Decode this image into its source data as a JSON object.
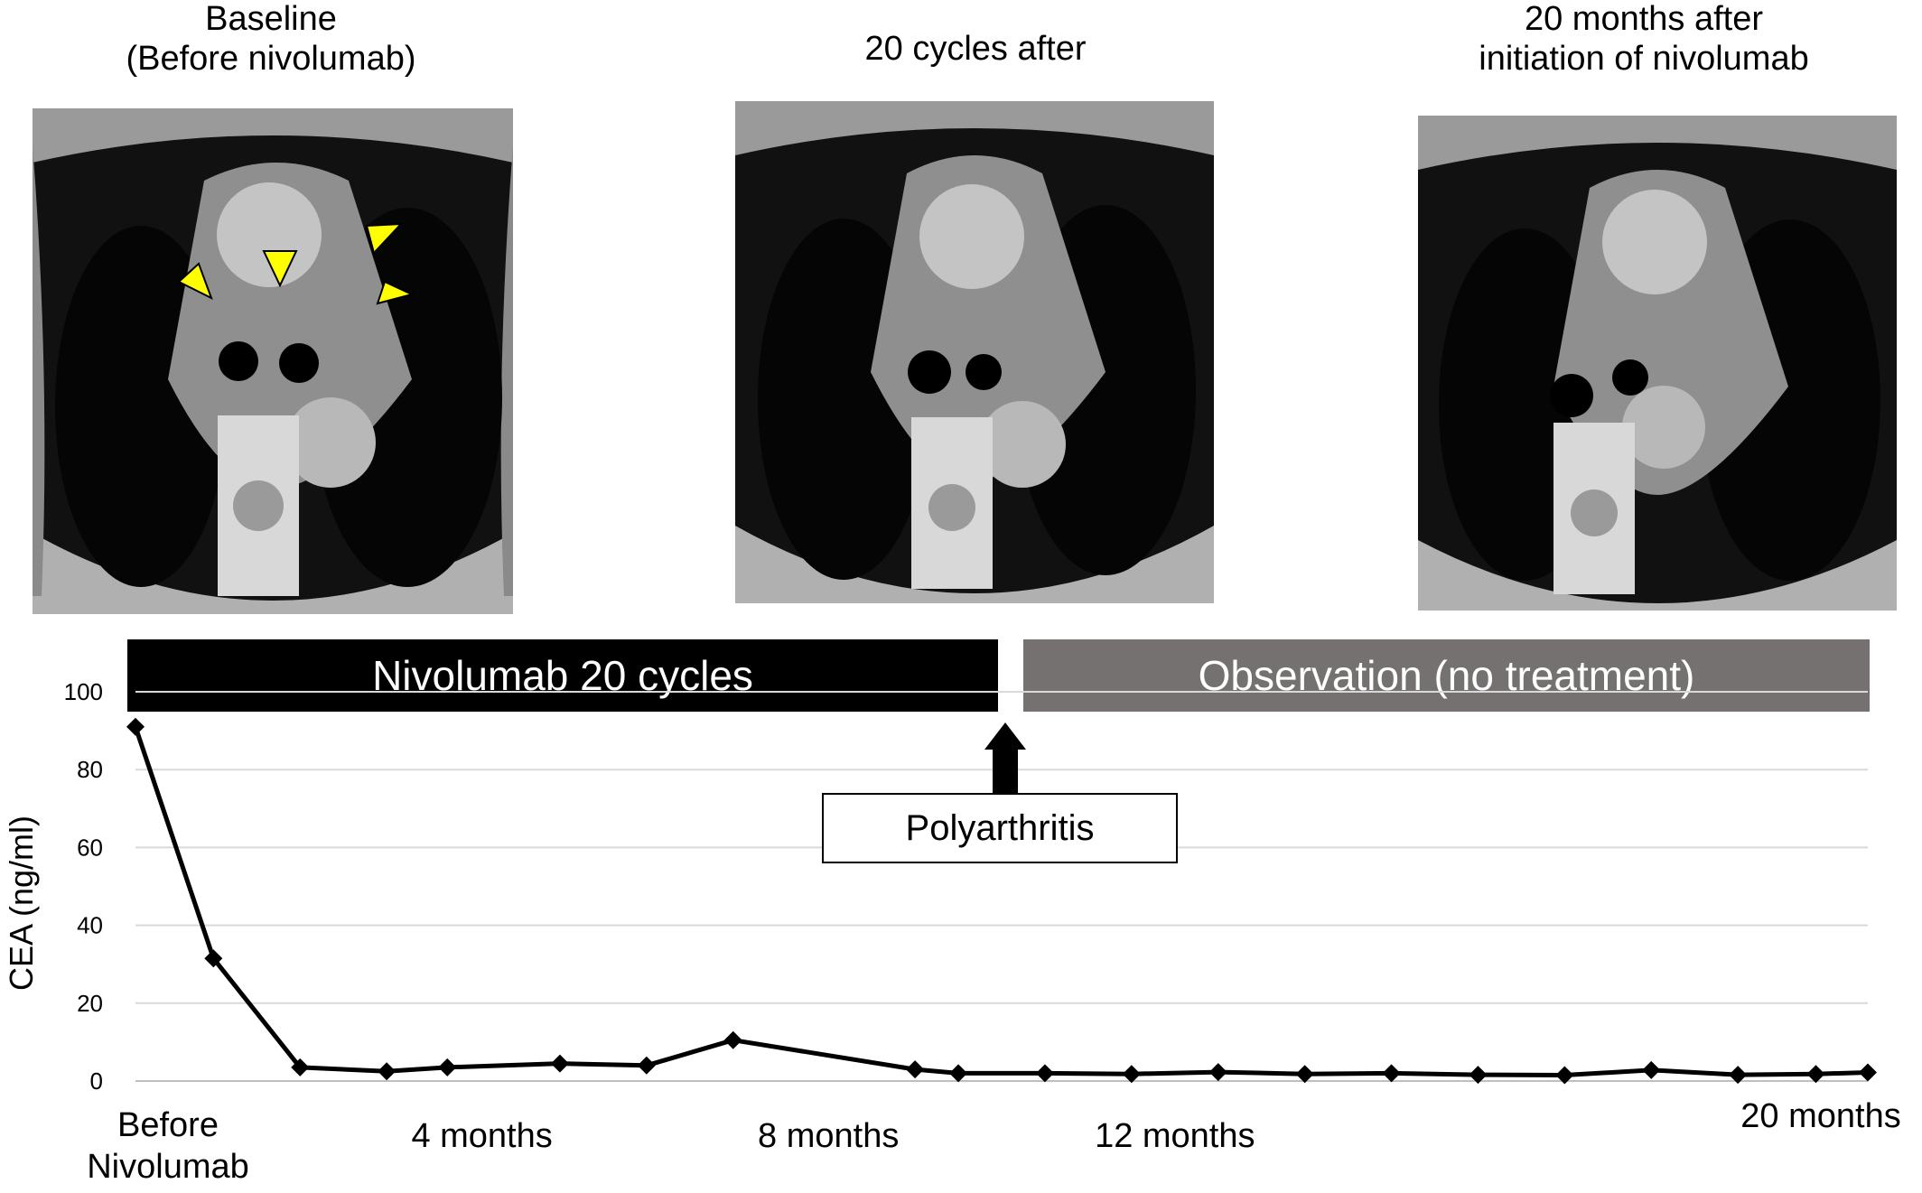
{
  "panels": [
    {
      "caption_lines": [
        "Baseline",
        "(Before nivolumab)"
      ]
    },
    {
      "caption_lines": [
        "20 cycles after"
      ]
    },
    {
      "caption_lines": [
        "20 months after",
        "initiation of nivolumab"
      ]
    }
  ],
  "timeline": {
    "treatment_label": "Nivolumab 20 cycles",
    "treatment_color": "#000000",
    "observation_label": "Observation (no treatment)",
    "observation_color": "#767171",
    "event_label": "Polyarthritis"
  },
  "colors": {
    "arrowhead": "#ffff00",
    "line": "#000000",
    "grid": "#d9d9d9"
  },
  "chart_data": {
    "type": "line",
    "title": "",
    "ylabel": "CEA (ng/ml)",
    "xlabel": "",
    "ylim": [
      0,
      100
    ],
    "yticks": [
      0,
      20,
      40,
      60,
      80,
      100
    ],
    "xlim": [
      0,
      20
    ],
    "grid": true,
    "x_labels": [
      {
        "x": 0,
        "lines": [
          "Before",
          "Nivolumab"
        ]
      },
      {
        "x": 4,
        "lines": [
          "4 months"
        ]
      },
      {
        "x": 8,
        "lines": [
          "8 months"
        ]
      },
      {
        "x": 12,
        "lines": [
          "12 months"
        ]
      },
      {
        "x": 20,
        "lines": [
          "20 months"
        ]
      }
    ],
    "series": [
      {
        "name": "",
        "x": [
          0,
          0.9,
          1.9,
          2.9,
          3.6,
          4.9,
          5.9,
          6.9,
          9.0,
          9.5,
          10.5,
          11.5,
          12.5,
          13.5,
          14.5,
          15.5,
          16.5,
          17.5,
          18.5,
          19.4,
          20.0
        ],
        "y": [
          91,
          31.5,
          3.5,
          2.5,
          3.5,
          4.5,
          4,
          10.5,
          3,
          2,
          2,
          1.8,
          2.3,
          1.8,
          2,
          1.6,
          1.5,
          2.8,
          1.6,
          1.8,
          2.2
        ]
      }
    ],
    "treatment_end_x": 10,
    "event_x": 10
  }
}
